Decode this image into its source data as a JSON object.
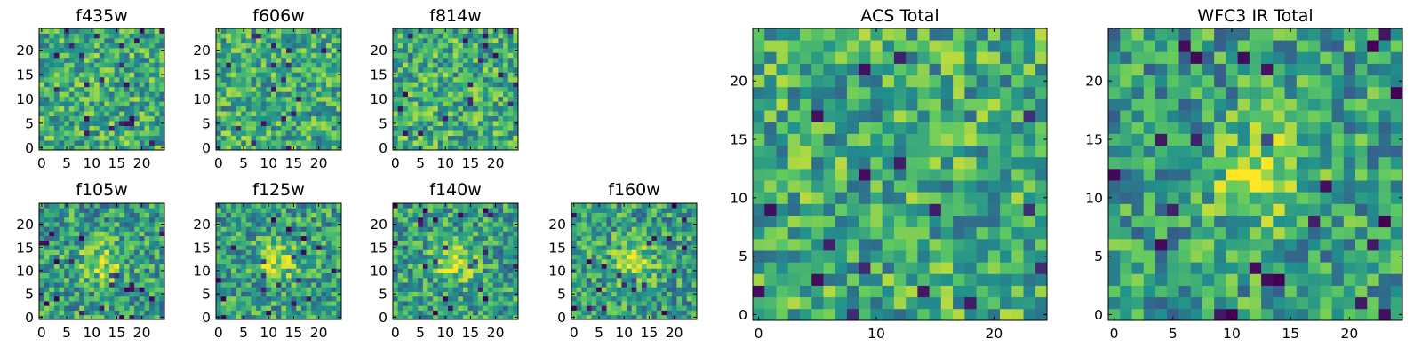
{
  "chart_data": [
    {
      "type": "heatmap",
      "title": "f435w",
      "x_ticks": [
        0,
        5,
        10,
        15,
        20
      ],
      "y_ticks": [
        0,
        5,
        10,
        15,
        20
      ],
      "grid": 25,
      "xlim": [
        -0.5,
        24.5
      ],
      "ylim": [
        -0.5,
        24.5
      ],
      "note": "random-noise pixel map, viridis colormap"
    },
    {
      "type": "heatmap",
      "title": "f606w",
      "x_ticks": [
        0,
        5,
        10,
        15,
        20
      ],
      "y_ticks": [
        0,
        5,
        10,
        15,
        20
      ],
      "grid": 25,
      "xlim": [
        -0.5,
        24.5
      ],
      "ylim": [
        -0.5,
        24.5
      ]
    },
    {
      "type": "heatmap",
      "title": "f814w",
      "x_ticks": [
        0,
        5,
        10,
        15,
        20
      ],
      "y_ticks": [
        0,
        5,
        10,
        15,
        20
      ],
      "grid": 25,
      "xlim": [
        -0.5,
        24.5
      ],
      "ylim": [
        -0.5,
        24.5
      ]
    },
    {
      "type": "heatmap",
      "title": "f105w",
      "x_ticks": [
        0,
        5,
        10,
        15,
        20
      ],
      "y_ticks": [
        0,
        5,
        10,
        15,
        20
      ],
      "grid": 25,
      "xlim": [
        -0.5,
        24.5
      ],
      "ylim": [
        -0.5,
        24.5
      ],
      "source_center": [
        12,
        12
      ]
    },
    {
      "type": "heatmap",
      "title": "f125w",
      "x_ticks": [
        0,
        5,
        10,
        15,
        20
      ],
      "y_ticks": [
        0,
        5,
        10,
        15,
        20
      ],
      "grid": 25,
      "xlim": [
        -0.5,
        24.5
      ],
      "ylim": [
        -0.5,
        24.5
      ],
      "source_center": [
        12,
        12
      ]
    },
    {
      "type": "heatmap",
      "title": "f140w",
      "x_ticks": [
        0,
        5,
        10,
        15,
        20
      ],
      "y_ticks": [
        0,
        5,
        10,
        15,
        20
      ],
      "grid": 25,
      "xlim": [
        -0.5,
        24.5
      ],
      "ylim": [
        -0.5,
        24.5
      ],
      "source_center": [
        12,
        12
      ]
    },
    {
      "type": "heatmap",
      "title": "f160w",
      "x_ticks": [
        0,
        5,
        10,
        15,
        20
      ],
      "y_ticks": [
        0,
        5,
        10,
        15,
        20
      ],
      "grid": 25,
      "xlim": [
        -0.5,
        24.5
      ],
      "ylim": [
        -0.5,
        24.5
      ],
      "source_center": [
        12,
        12
      ]
    },
    {
      "type": "heatmap",
      "title": "ACS Total",
      "x_ticks": [
        0,
        10,
        20
      ],
      "y_ticks": [
        0,
        5,
        10,
        15,
        20
      ],
      "grid": 25,
      "xlim": [
        -0.5,
        24.5
      ],
      "ylim": [
        -0.5,
        24.5
      ]
    },
    {
      "type": "heatmap",
      "title": "WFC3 IR Total",
      "x_ticks": [
        0,
        5,
        10,
        15,
        20
      ],
      "y_ticks": [
        0,
        5,
        10,
        15,
        20
      ],
      "grid": 25,
      "xlim": [
        -0.5,
        24.5
      ],
      "ylim": [
        -0.5,
        24.5
      ],
      "source_center": [
        12,
        12
      ]
    }
  ],
  "colormap": [
    "#440154",
    "#3b528b",
    "#21918c",
    "#5ec962",
    "#fde725"
  ]
}
